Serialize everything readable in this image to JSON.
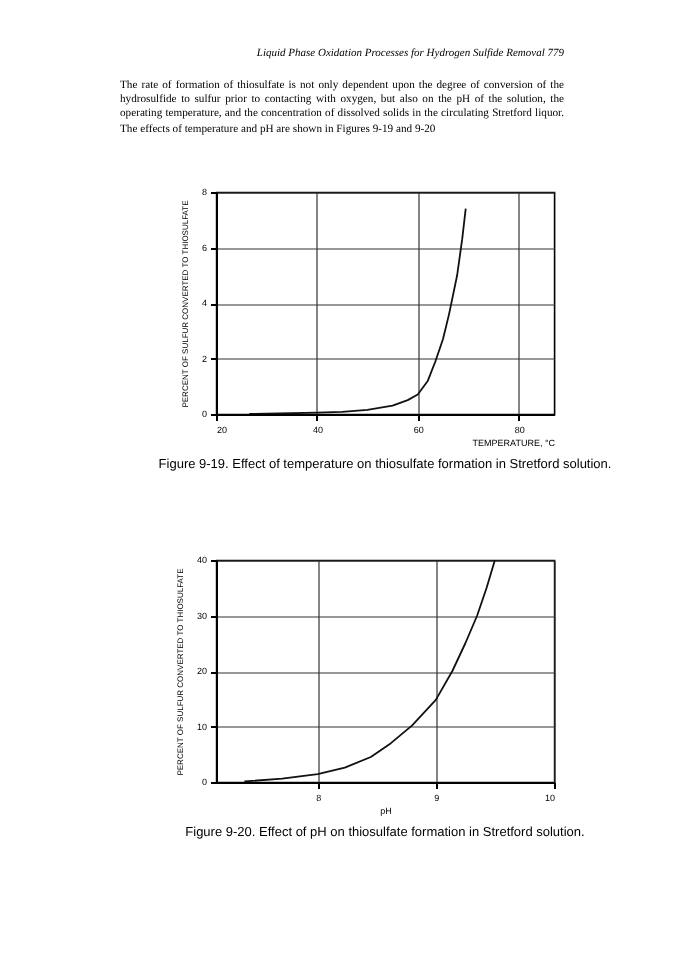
{
  "chart_data": [
    {
      "type": "line",
      "title": "Figure 9-19. Effect of temperature on thiosulfate formation in Stretford solution.",
      "xlabel": "TEMPERATURE, °C",
      "ylabel": "PERCENT OF SULFUR CONVERTED TO THIOSULFATE",
      "annotations": [
        "Liquid Phase Oxidation Processes for Hydrogen Sulfide Removal     779",
        "The rate of formation of thiosulfate is not only dependent upon the degree of conversion of the hydrosulfide to sulfur prior to contacting with oxygen, but also on the pH of the solution, the operating temperature, and the concentration of dissolved solids in the circulating Stretford liquor. The effects of temperature and pH are shown in Figures 9-19 and 9-20"
      ],
      "x": [
        26.6,
        35,
        40,
        45,
        50,
        55,
        58,
        60,
        62,
        63.5,
        65,
        66.2,
        67.8,
        68.8,
        69.5
      ],
      "series": [
        {
          "color": "#111111",
          "values": [
            0,
            0.03,
            0.05,
            0.08,
            0.15,
            0.3,
            0.5,
            0.7,
            1.2,
            1.9,
            2.7,
            3.6,
            5,
            6.3,
            7.4
          ]
        }
      ],
      "xlim": [
        20,
        87
      ],
      "xticks": [
        20,
        40,
        60,
        80
      ],
      "ylim": [
        0,
        8
      ],
      "yticks": [
        0,
        2,
        4,
        6,
        8
      ],
      "grid": true,
      "legend": false
    },
    {
      "type": "line",
      "title": "Figure 9-20. Effect of pH on thiosulfate formation in Stretford solution.",
      "xlabel": "pH",
      "ylabel": "PERCENT OF SULFUR CONVERTED TO THIOSULFATE",
      "x": [
        7.38,
        7.7,
        8,
        8.23,
        8.45,
        8.62,
        8.8,
        9,
        9.14,
        9.25,
        9.35,
        9.43,
        9.5
      ],
      "series": [
        {
          "color": "#111111",
          "values": [
            0.1,
            0.6,
            1.4,
            2.6,
            4.5,
            7,
            10.2,
            14.8,
            20,
            25,
            30,
            35,
            40
          ]
        }
      ],
      "xlim": [
        7.14,
        10
      ],
      "xticks": [
        8,
        9,
        10
      ],
      "ylim": [
        0,
        40
      ],
      "yticks": [
        0,
        10,
        20,
        30,
        40
      ],
      "grid": true,
      "legend": false
    }
  ]
}
